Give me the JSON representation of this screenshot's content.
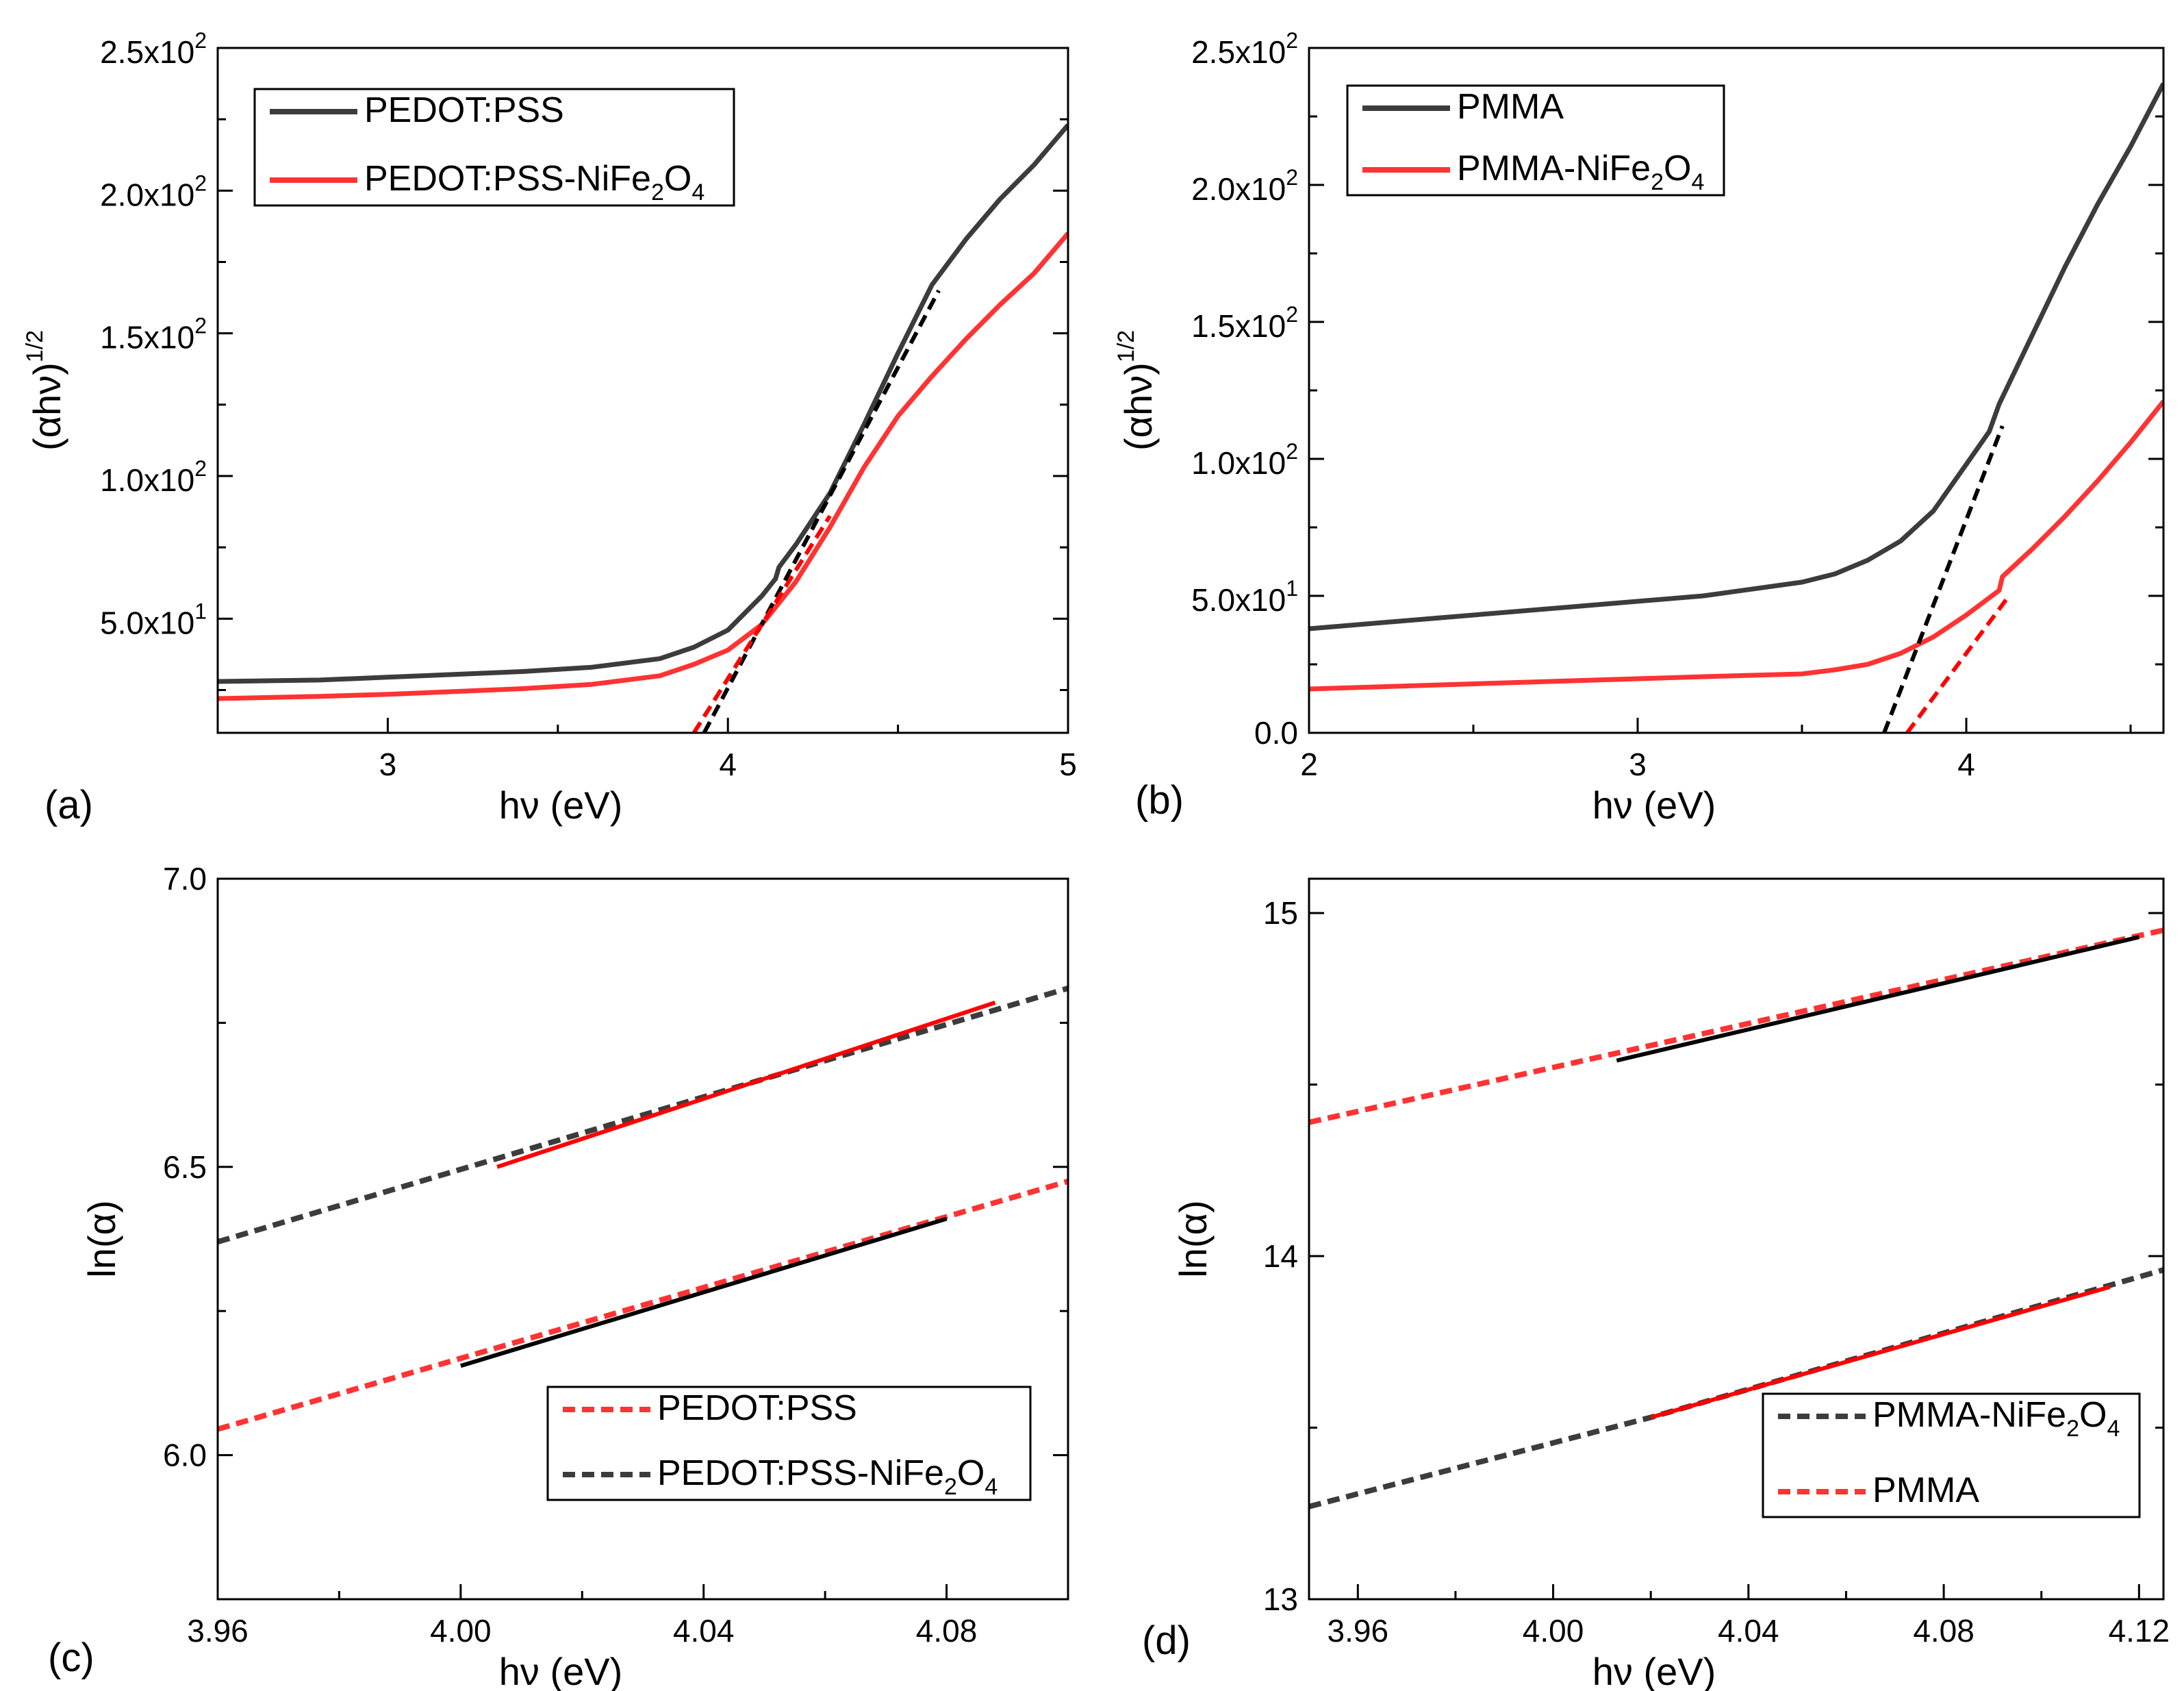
{
  "colors": {
    "black_series": "#3c3c3c",
    "red_series": "#ff3333",
    "fit_black": "#000000",
    "fit_red": "#ff0000",
    "axis": "#000000"
  },
  "chart_data": [
    {
      "type": "line",
      "panel_label": "(a)",
      "xlabel": "hν (eV)",
      "ylabel": "(αhν)",
      "ylabel_sup": "1/2",
      "xlim": [
        2.5,
        5.0
      ],
      "ylim": [
        10,
        250
      ],
      "xticks": [
        3,
        4,
        5
      ],
      "xtick_labels": [
        "3",
        "4",
        "5"
      ],
      "yticks": [
        50,
        100,
        150,
        200,
        250
      ],
      "ytick_labels": [
        {
          "base": "5.0x10",
          "exp": "1"
        },
        {
          "base": "1.0x10",
          "exp": "2"
        },
        {
          "base": "1.5x10",
          "exp": "2"
        },
        {
          "base": "2.0x10",
          "exp": "2"
        },
        {
          "base": "2.5x10",
          "exp": "2"
        }
      ],
      "legend": [
        {
          "label": "PEDOT:PSS",
          "color": "#3c3c3c",
          "dash": false
        },
        {
          "label": "PEDOT:PSS-NiFe",
          "sub1": "2",
          "mid": "O",
          "sub2": "4",
          "color": "#ff3333",
          "dash": false
        }
      ],
      "legend_pos": "top-left",
      "series": [
        {
          "name": "PEDOT:PSS",
          "color": "#3c3c3c",
          "width": 7,
          "dash": false,
          "x": [
            2.5,
            2.8,
            3.0,
            3.2,
            3.4,
            3.6,
            3.8,
            3.9,
            4.0,
            4.1,
            4.14,
            4.15,
            4.2,
            4.3,
            4.4,
            4.5,
            4.6,
            4.7,
            4.8,
            4.9,
            5.0
          ],
          "y": [
            28,
            28.5,
            29.5,
            30.5,
            31.5,
            33,
            36,
            40,
            46,
            58,
            64,
            68,
            76,
            94,
            118,
            143,
            167,
            183,
            197,
            209,
            223
          ]
        },
        {
          "name": "PEDOT:PSS-NiFe2O4",
          "color": "#ff3333",
          "width": 7,
          "dash": false,
          "x": [
            2.5,
            2.8,
            3.0,
            3.2,
            3.4,
            3.6,
            3.8,
            3.9,
            4.0,
            4.1,
            4.2,
            4.3,
            4.4,
            4.5,
            4.6,
            4.7,
            4.8,
            4.9,
            5.0
          ],
          "y": [
            22,
            22.8,
            23.5,
            24.5,
            25.5,
            27,
            30,
            34,
            39,
            48,
            63,
            82,
            103,
            121,
            135,
            148,
            160,
            171,
            185
          ]
        },
        {
          "name": "fit PEDOT:PSS",
          "color": "#000000",
          "width": 6,
          "dash": true,
          "x": [
            3.93,
            4.62
          ],
          "y": [
            10,
            165
          ]
        },
        {
          "name": "fit PEDOT:PSS-NiFe2O4",
          "color": "#ff0000",
          "width": 6,
          "dash": true,
          "x": [
            3.9,
            4.3
          ],
          "y": [
            10,
            86
          ]
        }
      ]
    },
    {
      "type": "line",
      "panel_label": "(b)",
      "xlabel": "hν (eV)",
      "ylabel": "(αhν)",
      "ylabel_sup": "1/2",
      "xlim": [
        2.0,
        4.6
      ],
      "ylim": [
        0,
        250
      ],
      "xticks": [
        2,
        3,
        4
      ],
      "xtick_labels": [
        "2",
        "3",
        "4"
      ],
      "yticks": [
        0,
        50,
        100,
        150,
        200,
        250
      ],
      "ytick_labels": [
        {
          "base": "0.0",
          "exp": ""
        },
        {
          "base": "5.0x10",
          "exp": "1"
        },
        {
          "base": "1.0x10",
          "exp": "2"
        },
        {
          "base": "1.5x10",
          "exp": "2"
        },
        {
          "base": "2.0x10",
          "exp": "2"
        },
        {
          "base": "2.5x10",
          "exp": "2"
        }
      ],
      "legend": [
        {
          "label": "PMMA",
          "color": "#3c3c3c",
          "dash": false
        },
        {
          "label": "PMMA-NiFe",
          "sub1": "2",
          "mid": "O",
          "sub2": "4",
          "color": "#ff3333",
          "dash": false
        }
      ],
      "legend_pos": "top-left",
      "series": [
        {
          "name": "PMMA",
          "color": "#3c3c3c",
          "width": 7,
          "dash": false,
          "x": [
            2.0,
            2.4,
            2.8,
            3.2,
            3.5,
            3.6,
            3.7,
            3.8,
            3.9,
            4.0,
            4.07,
            4.1,
            4.2,
            4.3,
            4.4,
            4.5,
            4.6
          ],
          "y": [
            38,
            42,
            46,
            50,
            55,
            58,
            63,
            70,
            81,
            98,
            110,
            120,
            145,
            170,
            193,
            214,
            237
          ]
        },
        {
          "name": "PMMA-NiFe2O4",
          "color": "#ff3333",
          "width": 7,
          "dash": false,
          "x": [
            2.0,
            2.4,
            2.8,
            3.2,
            3.5,
            3.6,
            3.7,
            3.8,
            3.9,
            4.0,
            4.1,
            4.11,
            4.2,
            4.3,
            4.4,
            4.5,
            4.6
          ],
          "y": [
            16,
            17.5,
            19,
            20.5,
            21.5,
            23,
            25,
            29,
            35,
            43,
            52,
            57,
            67,
            79,
            92,
            106,
            121
          ]
        },
        {
          "name": "fit PMMA",
          "color": "#000000",
          "width": 6,
          "dash": true,
          "x": [
            3.75,
            4.11
          ],
          "y": [
            0,
            112
          ]
        },
        {
          "name": "fit PMMA-NiFe2O4",
          "color": "#ff0000",
          "width": 6,
          "dash": true,
          "x": [
            3.82,
            4.13
          ],
          "y": [
            0,
            50
          ]
        }
      ]
    },
    {
      "type": "line",
      "panel_label": "(c)",
      "xlabel": "hν (eV)",
      "ylabel": "ln(α)",
      "ylabel_sup": "",
      "xlim": [
        3.96,
        4.1
      ],
      "ylim": [
        5.75,
        7.0
      ],
      "xticks": [
        3.96,
        4.0,
        4.04,
        4.08
      ],
      "xtick_labels": [
        "3.96",
        "4.00",
        "4.04",
        "4.08"
      ],
      "yticks": [
        6.0,
        6.5,
        7.0
      ],
      "ytick_labels": [
        {
          "base": "6.0",
          "exp": ""
        },
        {
          "base": "6.5",
          "exp": ""
        },
        {
          "base": "7.0",
          "exp": ""
        }
      ],
      "legend": [
        {
          "label": "PEDOT:PSS",
          "color": "#ff3333",
          "dash": true
        },
        {
          "label": "PEDOT:PSS-NiFe",
          "sub1": "2",
          "mid": "O",
          "sub2": "4",
          "color": "#3c3c3c",
          "dash": true
        }
      ],
      "legend_pos": "bottom-right",
      "series": [
        {
          "name": "PEDOT:PSS-NiFe2O4 data",
          "color": "#3c3c3c",
          "width": 8,
          "dash": true,
          "x": [
            3.96,
            4.1
          ],
          "y": [
            6.37,
            6.81
          ]
        },
        {
          "name": "PEDOT:PSS data",
          "color": "#ff3333",
          "width": 8,
          "dash": true,
          "x": [
            3.96,
            4.1
          ],
          "y": [
            6.045,
            6.475
          ]
        },
        {
          "name": "fit upper",
          "color": "#ff0000",
          "width": 6,
          "dash": false,
          "x": [
            4.006,
            4.088
          ],
          "y": [
            6.5,
            6.785
          ]
        },
        {
          "name": "fit lower",
          "color": "#000000",
          "width": 6,
          "dash": false,
          "x": [
            4.0,
            4.08
          ],
          "y": [
            6.155,
            6.41
          ]
        }
      ]
    },
    {
      "type": "line",
      "panel_label": "(d)",
      "xlabel": "hν (eV)",
      "ylabel": "ln(α)",
      "ylabel_sup": "",
      "xlim": [
        3.95,
        4.125
      ],
      "ylim": [
        13.0,
        15.1
      ],
      "xticks": [
        3.96,
        4.0,
        4.04,
        4.08,
        4.12
      ],
      "xtick_labels": [
        "3.96",
        "4.00",
        "4.04",
        "4.08",
        "4.12"
      ],
      "yticks": [
        13,
        14,
        15
      ],
      "ytick_labels": [
        {
          "base": "13",
          "exp": ""
        },
        {
          "base": "14",
          "exp": ""
        },
        {
          "base": "15",
          "exp": ""
        }
      ],
      "legend": [
        {
          "label": "PMMA-NiFe",
          "sub1": "2",
          "mid": "O",
          "sub2": "4",
          "color": "#3c3c3c",
          "dash": true
        },
        {
          "label": "PMMA",
          "color": "#ff3333",
          "dash": true
        }
      ],
      "legend_pos": "bottom-right",
      "series": [
        {
          "name": "PMMA data",
          "color": "#ff3333",
          "width": 8,
          "dash": true,
          "x": [
            3.95,
            4.125
          ],
          "y": [
            14.39,
            14.95
          ]
        },
        {
          "name": "PMMA-NiFe2O4 data",
          "color": "#3c3c3c",
          "width": 8,
          "dash": true,
          "x": [
            3.95,
            4.02,
            4.125
          ],
          "y": [
            13.27,
            13.53,
            13.96
          ]
        },
        {
          "name": "fit upper",
          "color": "#000000",
          "width": 6,
          "dash": false,
          "x": [
            4.013,
            4.12
          ],
          "y": [
            14.57,
            14.93
          ]
        },
        {
          "name": "fit lower",
          "color": "#ff0000",
          "width": 6,
          "dash": false,
          "x": [
            4.02,
            4.114
          ],
          "y": [
            13.53,
            13.91
          ]
        }
      ]
    }
  ]
}
